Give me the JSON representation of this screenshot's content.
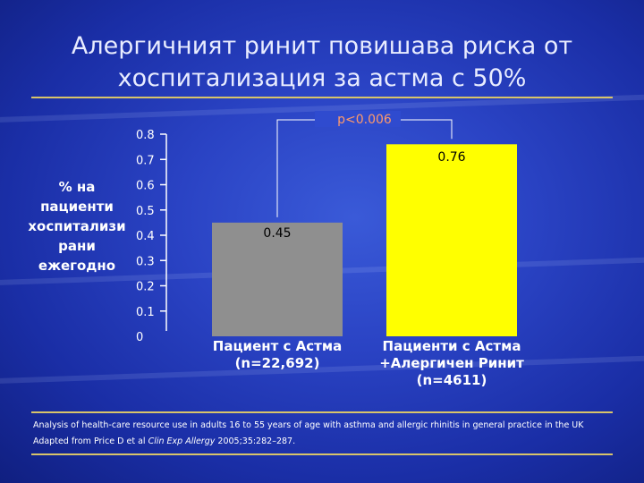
{
  "slide": {
    "title_line1": "Алергичният ринит повишава риска от",
    "title_line2": "хоспитализация за астма с 50%",
    "footnote_line1": "Analysis of health-care resource use in adults 16 to 55 years of age with asthma and allergic rhinitis in general practice in the UK",
    "footnote_line2_prefix": "Adapted from Price D et al ",
    "footnote_line2_journal": "Clin Exp Allergy",
    "footnote_line2_suffix": " 2005;35:282–287."
  },
  "colors": {
    "accent_rule": "#d8c46a",
    "bar_1": "#8f8f8f",
    "bar_2": "#ffff00",
    "pvalue": "#ff9a6a"
  },
  "chart_data": {
    "type": "bar",
    "title": "",
    "ylabel": "% на\nпациенти\nхоспитализи\nрани\nежегодно",
    "xlabel": "",
    "ylim": [
      0,
      0.8
    ],
    "yticks": [
      "0",
      "0.1",
      "0.2",
      "0.3",
      "0.4",
      "0.5",
      "0.6",
      "0.7",
      "0.8"
    ],
    "categories": [
      "Пациент с Астма\n(n=22,692)",
      "Пациенти с Астма\n+Алергичен Ринит\n(n=4611)"
    ],
    "values": [
      0.45,
      0.76
    ],
    "value_labels": [
      "0.45",
      "0.76"
    ],
    "annotation": "p<0.006",
    "grid": false,
    "legend": "none"
  }
}
